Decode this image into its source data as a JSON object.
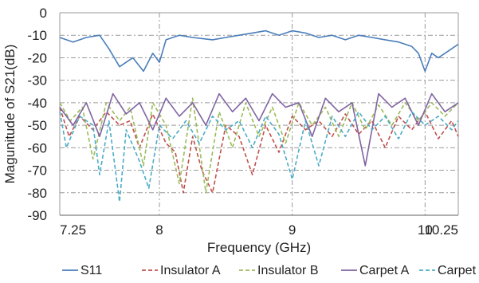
{
  "chart_data": {
    "type": "line",
    "xlabel": "Frequency (GHz)",
    "ylabel": "Magunitude of S21(dB)",
    "xlim": [
      7.25,
      10.25
    ],
    "ylim": [
      -90,
      0
    ],
    "x_ticks": [
      7.25,
      8,
      9,
      10,
      10.25
    ],
    "x_tick_labels": [
      "7.25",
      "8",
      "9",
      "10",
      "10.25"
    ],
    "y_ticks": [
      0,
      -10,
      -20,
      -30,
      -40,
      -50,
      -60,
      -70,
      -80,
      -90
    ],
    "y_tick_labels": [
      "0",
      "-10",
      "-20",
      "-30",
      "-40",
      "-50",
      "-60",
      "-70",
      "-80",
      "-90"
    ],
    "grid": "dash-dot vertical and horizontal",
    "legend_position": "bottom",
    "series": [
      {
        "name": "S11",
        "color": "#4a7ebb",
        "dash": "solid",
        "x": [
          7.25,
          7.35,
          7.45,
          7.55,
          7.62,
          7.7,
          7.8,
          7.88,
          7.95,
          8.0,
          8.05,
          8.15,
          8.25,
          8.4,
          8.5,
          8.6,
          8.7,
          8.8,
          8.9,
          9.0,
          9.1,
          9.2,
          9.3,
          9.4,
          9.5,
          9.6,
          9.7,
          9.8,
          9.9,
          9.95,
          10.0,
          10.05,
          10.1,
          10.2,
          10.25
        ],
        "y": [
          -11,
          -13,
          -11,
          -10,
          -16,
          -24,
          -20,
          -26,
          -18,
          -22,
          -12,
          -10,
          -11,
          -12,
          -11,
          -10,
          -9,
          -8,
          -10,
          -8,
          -9,
          -11,
          -10,
          -12,
          -10,
          -11,
          -12,
          -13,
          -15,
          -18,
          -26,
          -18,
          -20,
          -16,
          -14
        ]
      },
      {
        "name": "Insulator A",
        "color": "#c0504d",
        "dash": "dashed",
        "x": [
          7.25,
          7.32,
          7.4,
          7.5,
          7.6,
          7.7,
          7.78,
          7.85,
          7.95,
          8.05,
          8.12,
          8.18,
          8.25,
          8.32,
          8.4,
          8.5,
          8.6,
          8.7,
          8.8,
          8.9,
          9.0,
          9.1,
          9.2,
          9.3,
          9.4,
          9.5,
          9.6,
          9.7,
          9.8,
          9.9,
          10.0,
          10.1,
          10.2,
          10.25
        ],
        "y": [
          -42,
          -55,
          -46,
          -52,
          -44,
          -50,
          -48,
          -60,
          -45,
          -58,
          -62,
          -80,
          -55,
          -70,
          -80,
          -50,
          -55,
          -72,
          -50,
          -62,
          -46,
          -52,
          -48,
          -55,
          -45,
          -54,
          -48,
          -60,
          -46,
          -52,
          -44,
          -56,
          -48,
          -55
        ]
      },
      {
        "name": "Insulator B",
        "color": "#9bbb59",
        "dash": "dashed",
        "x": [
          7.25,
          7.33,
          7.42,
          7.5,
          7.6,
          7.7,
          7.78,
          7.88,
          7.95,
          8.05,
          8.15,
          8.25,
          8.35,
          8.45,
          8.55,
          8.65,
          8.75,
          8.85,
          8.95,
          9.05,
          9.15,
          9.25,
          9.35,
          9.45,
          9.55,
          9.65,
          9.75,
          9.85,
          9.95,
          10.05,
          10.15,
          10.25
        ],
        "y": [
          -40,
          -48,
          -42,
          -65,
          -40,
          -48,
          -42,
          -68,
          -40,
          -50,
          -76,
          -38,
          -80,
          -44,
          -60,
          -40,
          -55,
          -42,
          -58,
          -40,
          -50,
          -42,
          -55,
          -40,
          -52,
          -41,
          -50,
          -40,
          -48,
          -40,
          -46,
          -40
        ]
      },
      {
        "name": "Carpet A",
        "color": "#8064a2",
        "dash": "solid",
        "x": [
          7.25,
          7.35,
          7.45,
          7.55,
          7.65,
          7.75,
          7.85,
          7.95,
          8.05,
          8.15,
          8.25,
          8.35,
          8.45,
          8.55,
          8.65,
          8.75,
          8.85,
          8.95,
          9.05,
          9.15,
          9.25,
          9.35,
          9.45,
          9.55,
          9.65,
          9.75,
          9.85,
          9.95,
          10.05,
          10.15,
          10.25
        ],
        "y": [
          -42,
          -50,
          -40,
          -55,
          -36,
          -45,
          -40,
          -52,
          -38,
          -46,
          -40,
          -50,
          -36,
          -44,
          -38,
          -48,
          -36,
          -42,
          -40,
          -55,
          -38,
          -44,
          -40,
          -68,
          -36,
          -42,
          -38,
          -50,
          -36,
          -44,
          -40
        ]
      },
      {
        "name": "Carpet B",
        "color": "#4bacc6",
        "dash": "dashed",
        "x": [
          7.25,
          7.3,
          7.4,
          7.5,
          7.55,
          7.62,
          7.7,
          7.75,
          7.85,
          7.92,
          8.0,
          8.1,
          8.2,
          8.3,
          8.4,
          8.5,
          8.6,
          8.7,
          8.8,
          8.9,
          9.0,
          9.1,
          9.2,
          9.3,
          9.4,
          9.5,
          9.6,
          9.7,
          9.8,
          9.9,
          10.0,
          10.1,
          10.2,
          10.25
        ],
        "y": [
          -44,
          -60,
          -46,
          -50,
          -72,
          -48,
          -84,
          -52,
          -66,
          -78,
          -50,
          -56,
          -48,
          -58,
          -46,
          -52,
          -48,
          -60,
          -46,
          -54,
          -74,
          -48,
          -68,
          -46,
          -55,
          -44,
          -52,
          -46,
          -56,
          -44,
          -50,
          -46,
          -52,
          -48
        ]
      }
    ]
  }
}
